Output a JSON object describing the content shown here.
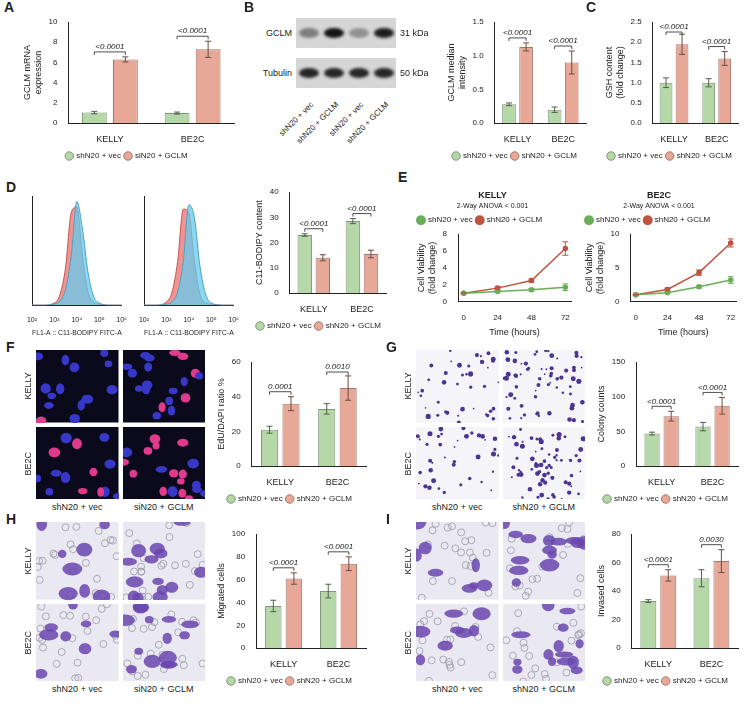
{
  "chart_data": [
    {
      "panel": "A",
      "type": "bar",
      "categories": [
        "KELLY",
        "BE2C"
      ],
      "y_label": "GCLM mRNA expression",
      "ylim": [
        0,
        10
      ],
      "yticks": [
        0,
        2,
        4,
        6,
        8,
        10
      ],
      "grid": false,
      "legend": "bottom",
      "annotations": [
        "<0.0001",
        "<0.0001"
      ],
      "series": [
        {
          "name": "shN20 + vec",
          "color": "#b6d7a8",
          "values": [
            1.05,
            1.0
          ],
          "errors": [
            0.12,
            0.1
          ]
        },
        {
          "name": "siN20 + GCLM",
          "color": "#e8a898",
          "values": [
            6.3,
            7.3
          ],
          "errors": [
            0.25,
            0.8
          ]
        }
      ]
    },
    {
      "type": "bar",
      "categories": [
        "KELLY",
        "BE2C"
      ],
      "y_label": "GCLM median intensity",
      "ylim": [
        0,
        1.5
      ],
      "yticks": [
        {
          "value": 0,
          "label": "0.0"
        },
        0.5,
        {
          "value": 1,
          "label": "1.0"
        },
        1.5
      ],
      "grid": false,
      "legend": "bottom",
      "annotations": [
        "<0.0001",
        "<0.0001"
      ],
      "series": [
        {
          "name": "shN20 + vec",
          "color": "#b6d7a8",
          "values": [
            0.28,
            0.2
          ],
          "errors": [
            0.02,
            0.04
          ]
        },
        {
          "name": "shN20 + GCLM",
          "color": "#e8a898",
          "values": [
            1.13,
            0.9
          ],
          "errors": [
            0.06,
            0.17
          ]
        }
      ]
    },
    {
      "panel": "C",
      "type": "bar",
      "categories": [
        "KELLY",
        "BE2C"
      ],
      "y_label": "GSH content (fold change)",
      "ylim": [
        0,
        2.5
      ],
      "yticks": [
        {
          "value": 0,
          "label": "0.0"
        },
        0.5,
        {
          "value": 1,
          "label": "1.0"
        },
        1.5,
        {
          "value": 2,
          "label": "2.0"
        },
        2.5
      ],
      "grid": false,
      "legend": "bottom",
      "annotations": [
        "<0.0001",
        "<0.0001"
      ],
      "series": [
        {
          "name": "shN20 + vec",
          "color": "#b6d7a8",
          "values": [
            1.0,
            1.0
          ],
          "errors": [
            0.12,
            0.1
          ]
        },
        {
          "name": "shN20 + GCLM",
          "color": "#e8a898",
          "values": [
            1.95,
            1.6
          ],
          "errors": [
            0.25,
            0.17
          ]
        }
      ]
    },
    {
      "panel": "D",
      "type": "area",
      "log": "x",
      "tick_labels": "x",
      "x_label": "FL1-A :: C11-BODIPY FITC-A",
      "x": [
        100,
        316,
        1000,
        1778,
        3162,
        5623,
        10000,
        17783,
        31623,
        56234,
        100000,
        316228,
        1000000
      ],
      "xlim": [
        100,
        1000000
      ],
      "xticks": [
        {
          "value": 100,
          "label": "10²"
        },
        {
          "value": 1000,
          "label": "10³"
        },
        {
          "value": 10000,
          "label": "10⁴"
        },
        {
          "value": 100000,
          "label": "10⁵"
        },
        {
          "value": 1000000,
          "label": "10⁶"
        }
      ],
      "ylim": [
        0,
        100
      ],
      "grid": false,
      "series": [
        {
          "color": "#63cbee",
          "values": [
            0,
            0,
            1,
            4,
            15,
            45,
            95,
            70,
            30,
            8,
            2,
            0,
            0
          ]
        },
        {
          "color": "#ee6f6f",
          "values": [
            0,
            0,
            2,
            10,
            35,
            85,
            90,
            45,
            12,
            3,
            1,
            0,
            0
          ]
        }
      ]
    },
    {
      "type": "area",
      "log": "x",
      "tick_labels": "x",
      "x_label": "FL1-A :: C11-BODIPY FITC-A",
      "x": [
        100,
        316,
        1000,
        1778,
        3162,
        5623,
        10000,
        17783,
        31623,
        56234,
        100000,
        316228,
        1000000
      ],
      "xlim": [
        100,
        1000000
      ],
      "xticks": [
        {
          "value": 100,
          "label": "10²"
        },
        {
          "value": 1000,
          "label": "10³"
        },
        {
          "value": 10000,
          "label": "10⁴"
        },
        {
          "value": 100000,
          "label": "10⁵"
        },
        {
          "value": 1000000,
          "label": "10⁶"
        }
      ],
      "ylim": [
        0,
        100
      ],
      "grid": false,
      "series": [
        {
          "color": "#63cbee",
          "values": [
            0,
            0,
            1,
            3,
            12,
            40,
            92,
            80,
            35,
            10,
            2,
            0,
            0
          ]
        },
        {
          "color": "#ee6f6f",
          "values": [
            0,
            0,
            3,
            12,
            40,
            88,
            85,
            40,
            10,
            2,
            1,
            0,
            0
          ]
        }
      ]
    },
    {
      "type": "bar",
      "categories": [
        "KELLY",
        "BE2C"
      ],
      "y_label": "C11-BODIPY content",
      "ylim": [
        0,
        40
      ],
      "yticks": [
        0,
        10,
        20,
        30,
        40
      ],
      "grid": false,
      "legend": "bottom",
      "annotations": [
        "<0.0001",
        "<0.0001"
      ],
      "series": [
        {
          "name": "shN20 + vec",
          "color": "#b6d7a8",
          "values": [
            23,
            28.5
          ],
          "errors": [
            0.5,
            1
          ]
        },
        {
          "name": "shN20 + GCLM",
          "color": "#e8a898",
          "values": [
            14,
            15.5
          ],
          "errors": [
            1.2,
            1.5
          ]
        }
      ]
    },
    {
      "panel": "E",
      "type": "line",
      "title": "KELLY",
      "annotation": "2-Way ANOVA < 0.001",
      "x": [
        0,
        24,
        48,
        72
      ],
      "xlim": [
        -4,
        76
      ],
      "xticks": [
        0,
        24,
        48,
        72
      ],
      "x_label": "Time (hours)",
      "y_label": "Cell Viability (fold change)",
      "ylim": [
        0,
        8
      ],
      "yticks": [
        0,
        2,
        4,
        6,
        8
      ],
      "grid": false,
      "legend": "top",
      "series": [
        {
          "name": "shN20 + vec",
          "color": "#6aaf58",
          "marker": "circle",
          "values": [
            1,
            1.2,
            1.4,
            1.7
          ],
          "errors": [
            0.05,
            0.1,
            0.15,
            0.4
          ]
        },
        {
          "name": "shN20 + GCLM",
          "color": "#c0533f",
          "marker": "circle",
          "values": [
            1,
            1.6,
            2.5,
            6.3
          ],
          "errors": [
            0.05,
            0.2,
            0.2,
            0.8
          ]
        }
      ]
    },
    {
      "type": "line",
      "title": "BE2C",
      "annotation": "2-Way ANOVA < 0.001",
      "x": [
        0,
        24,
        48,
        72
      ],
      "xlim": [
        -4,
        76
      ],
      "xticks": [
        0,
        24,
        48,
        72
      ],
      "x_label": "Time (hours)",
      "y_label": "Cell Viability (fold change)",
      "ylim": [
        0,
        10
      ],
      "yticks": [
        0,
        5,
        10
      ],
      "grid": false,
      "legend": "top",
      "series": [
        {
          "name": "shN20 + vec",
          "color": "#6aaf58",
          "marker": "circle",
          "values": [
            1,
            1.3,
            2.2,
            3.2
          ],
          "errors": [
            0.05,
            0.1,
            0.2,
            0.5
          ]
        },
        {
          "name": "shN20 + GCLM",
          "color": "#c0533f",
          "marker": "circle",
          "values": [
            1,
            1.8,
            4.3,
            8.7
          ],
          "errors": [
            0.05,
            0.2,
            0.4,
            0.6
          ]
        }
      ]
    },
    {
      "type": "bar",
      "categories": [
        "KELLY",
        "BE2C"
      ],
      "y_label": "EdU/DAPI ratio %",
      "ylim": [
        0,
        60
      ],
      "yticks": [
        0,
        20,
        40,
        60
      ],
      "grid": false,
      "legend": "bottom",
      "annotations": [
        "0.0001",
        "0.0010"
      ],
      "series": [
        {
          "name": "shN20 + vec",
          "color": "#b6d7a8",
          "values": [
            21,
            33
          ],
          "errors": [
            2,
            3
          ]
        },
        {
          "name": "shN20 + GCLM",
          "color": "#e8a898",
          "values": [
            36,
            45
          ],
          "errors": [
            4,
            7
          ]
        }
      ]
    },
    {
      "type": "bar",
      "categories": [
        "KELLY",
        "BE2C"
      ],
      "y_label": "Colony counts",
      "ylim": [
        0,
        150
      ],
      "yticks": [
        0,
        50,
        100,
        150
      ],
      "grid": false,
      "legend": "bottom",
      "annotations": [
        "<0.0001",
        "<0.0001"
      ],
      "series": [
        {
          "name": "shN20 + vec",
          "color": "#b6d7a8",
          "values": [
            47,
            57
          ],
          "errors": [
            2,
            6
          ]
        },
        {
          "name": "shN20 + GCLM",
          "color": "#e8a898",
          "values": [
            72,
            87
          ],
          "errors": [
            7,
            12
          ]
        }
      ]
    },
    {
      "type": "bar",
      "categories": [
        "KELLY",
        "BE2C"
      ],
      "y_label": "Migrated cells",
      "ylim": [
        0,
        100
      ],
      "yticks": [
        0,
        20,
        40,
        60,
        80,
        100
      ],
      "grid": false,
      "legend": "bottom",
      "annotations": [
        "<0.0001",
        "<0.0001"
      ],
      "series": [
        {
          "name": "shN20 + vec",
          "color": "#b6d7a8",
          "values": [
            37,
            50
          ],
          "errors": [
            5,
            6
          ]
        },
        {
          "name": "shN20 + GCLM",
          "color": "#e8a898",
          "values": [
            61,
            74
          ],
          "errors": [
            5,
            6
          ]
        }
      ]
    },
    {
      "type": "bar",
      "categories": [
        "KELLY",
        "BE2C"
      ],
      "y_label": "Invased cells",
      "ylim": [
        0,
        80
      ],
      "yticks": [
        0,
        20,
        40,
        60,
        80
      ],
      "grid": false,
      "legend": "bottom",
      "annotations": [
        "<0.0001",
        "0.0030"
      ],
      "series": [
        {
          "name": "shN20 + vec",
          "color": "#b6d7a8",
          "values": [
            33,
            49
          ],
          "errors": [
            1,
            6
          ]
        },
        {
          "name": "shN20 + GCLM",
          "color": "#e8a898",
          "values": [
            51,
            61
          ],
          "errors": [
            4,
            8
          ]
        }
      ]
    }
  ],
  "blot": {
    "panel": "B",
    "rows": [
      {
        "label": "GCLM",
        "size": "31 kDa"
      },
      {
        "label": "Tubulin",
        "size": "50 kDa"
      }
    ],
    "lanes": [
      "shN20 + vec",
      "shN20 + GCLM",
      "shN20 + vec",
      "shN20 + GCLM"
    ]
  },
  "images": [
    {
      "panel": "F",
      "rows": [
        "KELLY",
        "BE2C"
      ],
      "columns": [
        "shN20 + vec",
        "siN20 + GCLM"
      ]
    },
    {
      "panel": "G",
      "rows": [
        "KELLY",
        "BE2C"
      ],
      "columns": [
        "shN20 + vec",
        "shN20 + GCLM"
      ]
    },
    {
      "panel": "H",
      "rows": [
        "KELLY",
        "BE2C"
      ],
      "columns": [
        "shN20 + vec",
        "siN20 + GCLM"
      ]
    },
    {
      "panel": "I",
      "rows": [
        "KELLY",
        "BE2C"
      ],
      "columns": [
        "shN20 + vec",
        "shN20 + GCLM"
      ]
    }
  ]
}
